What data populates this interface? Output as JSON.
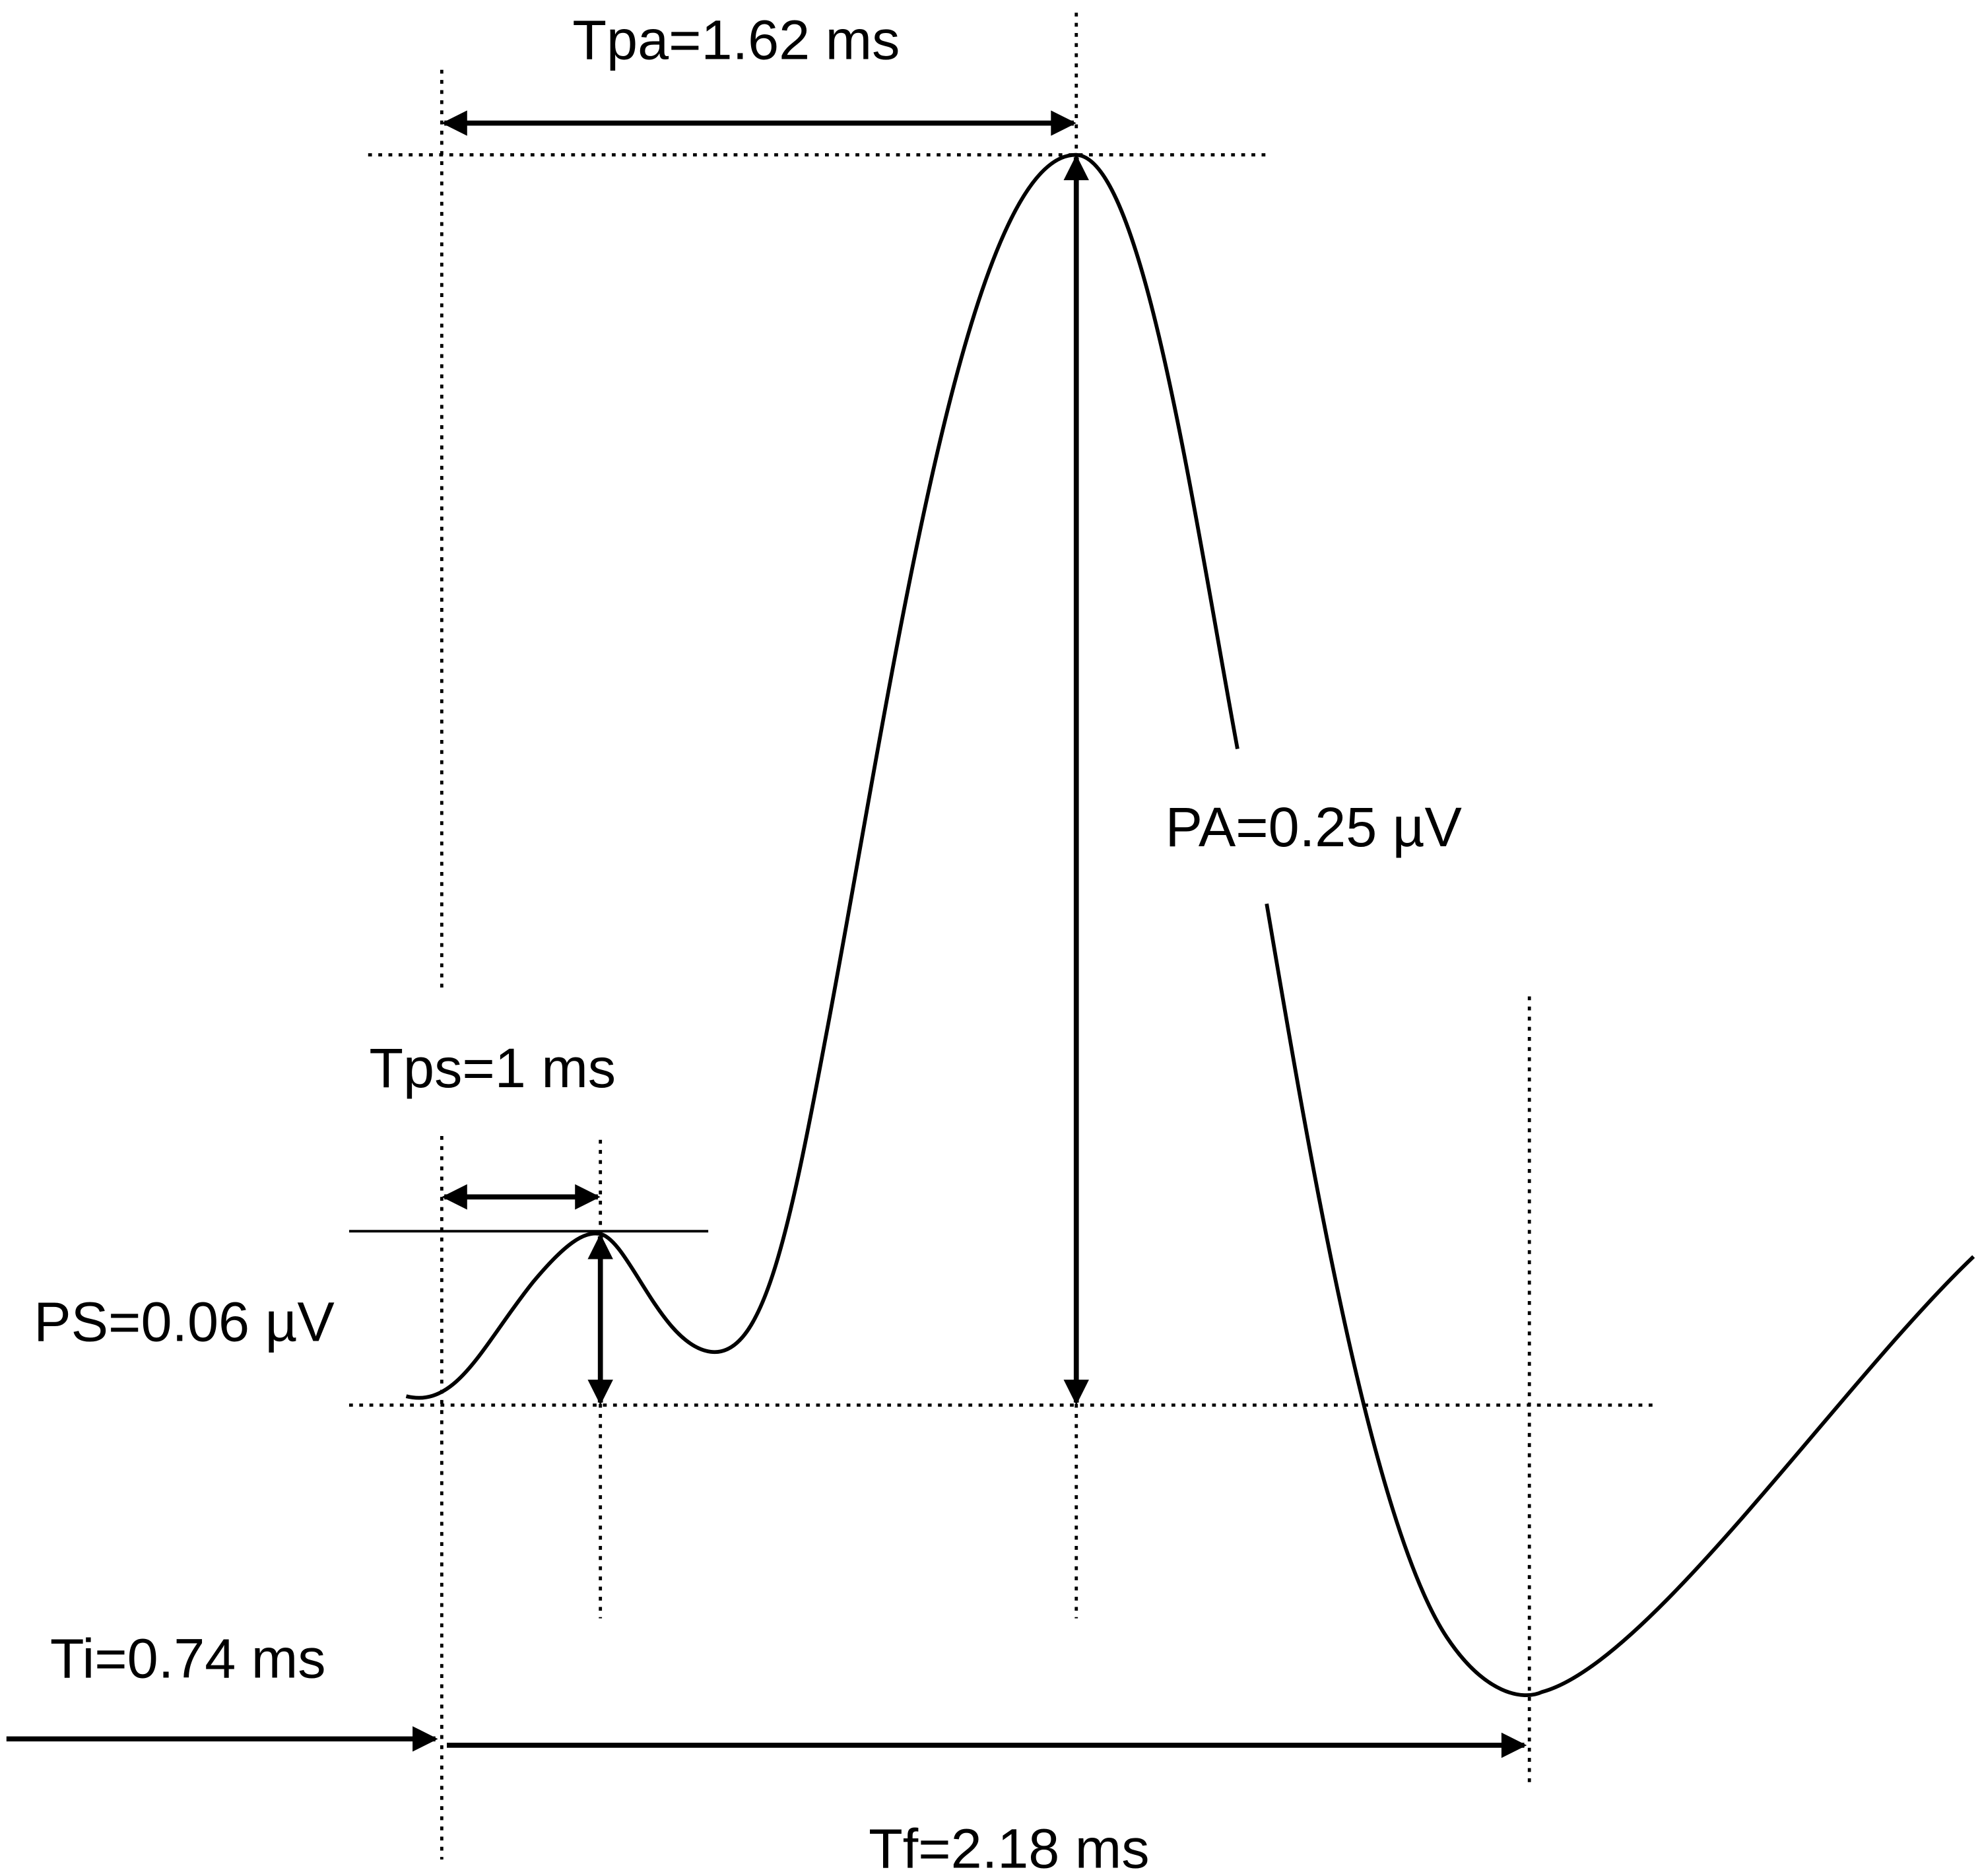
{
  "labels": {
    "tpa": "Tpa=1.62 ms",
    "pa": "PA=0.25 µV",
    "tps": "Tps=1 ms",
    "ps": "PS=0.06 µV",
    "ti": "Ti=0.74 ms",
    "tf": "Tf=2.18 ms"
  }
}
